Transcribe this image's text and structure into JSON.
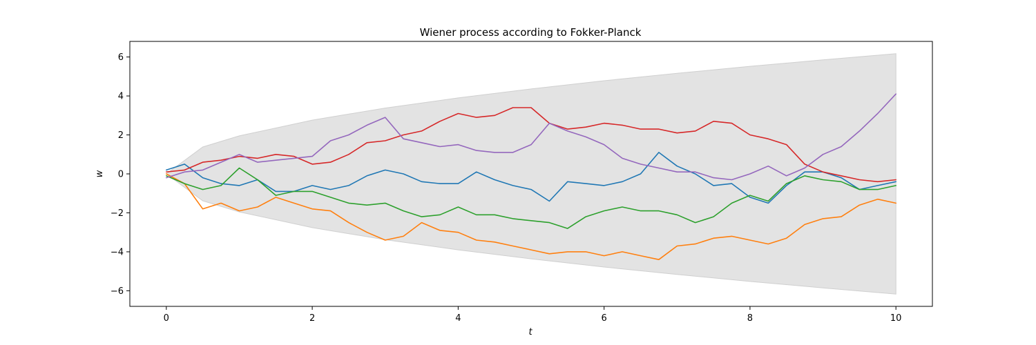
{
  "chart_data": {
    "type": "line",
    "title": "Wiener process according to Fokker-Planck",
    "xlabel": "t",
    "ylabel": "w",
    "xlim": [
      -0.5,
      10.5
    ],
    "ylim": [
      -6.8,
      6.8
    ],
    "xticks": [
      0,
      2,
      4,
      6,
      8,
      10
    ],
    "yticks": [
      -6,
      -4,
      -2,
      0,
      2,
      4,
      6
    ],
    "xtick_labels": [
      "0",
      "2",
      "4",
      "6",
      "8",
      "10"
    ],
    "ytick_labels": [
      "−6",
      "−4",
      "−2",
      "0",
      "2",
      "4",
      "6"
    ],
    "grid": false,
    "band": {
      "description": "±sqrt(2·D·t) envelope",
      "color": "#e3e3e3",
      "x": [
        0,
        0.5,
        1,
        2,
        3,
        4,
        5,
        6,
        7,
        8,
        9,
        10
      ],
      "upper": [
        0,
        1.38,
        1.95,
        2.76,
        3.38,
        3.9,
        4.36,
        4.78,
        5.16,
        5.52,
        5.85,
        6.17
      ],
      "lower": [
        0,
        -1.38,
        -1.95,
        -2.76,
        -3.38,
        -3.9,
        -4.36,
        -4.78,
        -5.16,
        -5.52,
        -5.85,
        -6.17
      ]
    },
    "x": [
      0,
      0.25,
      0.5,
      0.75,
      1,
      1.25,
      1.5,
      1.75,
      2,
      2.25,
      2.5,
      2.75,
      3,
      3.25,
      3.5,
      3.75,
      4,
      4.25,
      4.5,
      4.75,
      5,
      5.25,
      5.5,
      5.75,
      6,
      6.25,
      6.5,
      6.75,
      7,
      7.25,
      7.5,
      7.75,
      8,
      8.25,
      8.5,
      8.75,
      9,
      9.25,
      9.5,
      9.75,
      10
    ],
    "series": [
      {
        "color": "#1f77b4",
        "values": [
          0.2,
          0.5,
          -0.2,
          -0.5,
          -0.6,
          -0.3,
          -0.9,
          -0.9,
          -0.6,
          -0.8,
          -0.6,
          -0.1,
          0.2,
          0,
          -0.4,
          -0.5,
          -0.5,
          0.1,
          -0.3,
          -0.6,
          -0.8,
          -1.4,
          -0.4,
          -0.5,
          -0.6,
          -0.4,
          0,
          1.1,
          0.4,
          0,
          -0.6,
          -0.5,
          -1.2,
          -1.5,
          -0.6,
          0.1,
          0.1,
          -0.2,
          -0.8,
          -0.6,
          -0.4
        ]
      },
      {
        "color": "#ff7f0e",
        "values": [
          0,
          -0.5,
          -1.8,
          -1.5,
          -1.9,
          -1.7,
          -1.2,
          -1.5,
          -1.8,
          -1.9,
          -2.5,
          -3,
          -3.4,
          -3.2,
          -2.5,
          -2.9,
          -3,
          -3.4,
          -3.5,
          -3.7,
          -3.9,
          -4.1,
          -4,
          -4,
          -4.2,
          -4,
          -4.2,
          -4.4,
          -3.7,
          -3.6,
          -3.3,
          -3.2,
          -3.4,
          -3.6,
          -3.3,
          -2.6,
          -2.3,
          -2.2,
          -1.6,
          -1.3,
          -1.5
        ]
      },
      {
        "color": "#2ca02c",
        "values": [
          -0.1,
          -0.5,
          -0.8,
          -0.6,
          0.3,
          -0.3,
          -1.1,
          -0.9,
          -0.9,
          -1.2,
          -1.5,
          -1.6,
          -1.5,
          -1.9,
          -2.2,
          -2.1,
          -1.7,
          -2.1,
          -2.1,
          -2.3,
          -2.4,
          -2.5,
          -2.8,
          -2.2,
          -1.9,
          -1.7,
          -1.9,
          -1.9,
          -2.1,
          -2.5,
          -2.2,
          -1.5,
          -1.1,
          -1.4,
          -0.5,
          -0.1,
          -0.3,
          -0.4,
          -0.8,
          -0.8,
          -0.6
        ]
      },
      {
        "color": "#d62728",
        "values": [
          0.1,
          0.2,
          0.6,
          0.7,
          0.9,
          0.8,
          1,
          0.9,
          0.5,
          0.6,
          1,
          1.6,
          1.7,
          2,
          2.2,
          2.7,
          3.1,
          2.9,
          3,
          3.4,
          3.4,
          2.6,
          2.3,
          2.4,
          2.6,
          2.5,
          2.3,
          2.3,
          2.1,
          2.2,
          2.7,
          2.6,
          2,
          1.8,
          1.5,
          0.5,
          0.1,
          -0.1,
          -0.3,
          -0.4,
          -0.3
        ]
      },
      {
        "color": "#9467bd",
        "values": [
          -0.2,
          0.1,
          0.2,
          0.6,
          1,
          0.6,
          0.7,
          0.8,
          0.9,
          1.7,
          2,
          2.5,
          2.9,
          1.8,
          1.6,
          1.4,
          1.5,
          1.2,
          1.1,
          1.1,
          1.5,
          2.6,
          2.2,
          1.9,
          1.5,
          0.8,
          0.5,
          0.3,
          0.1,
          0.1,
          -0.2,
          -0.3,
          0,
          0.4,
          -0.1,
          0.3,
          1,
          1.4,
          2.2,
          3.1,
          4.1
        ]
      }
    ]
  }
}
